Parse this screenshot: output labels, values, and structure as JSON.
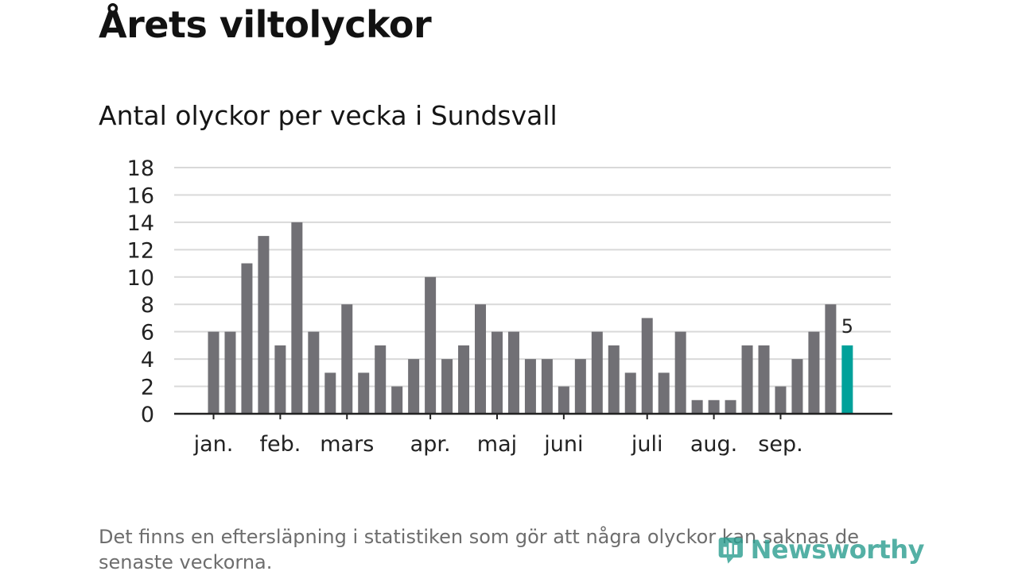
{
  "title": "Årets viltolyckor",
  "subtitle": "Antal olyckor per vecka i Sundsvall",
  "note": "Det finns en eftersläpning i statistiken som gör att några olyckor kan saknas de senaste veckorna.",
  "brand": "Newsworthy",
  "colors": {
    "bar": "#717075",
    "highlight": "#00a19a",
    "grid": "#d9d9d9",
    "axis": "#222222"
  },
  "chart_data": {
    "type": "bar",
    "title": "Antal olyckor per vecka i Sundsvall",
    "xlabel": "",
    "ylabel": "",
    "ylim": [
      0,
      18
    ],
    "yticks": [
      0,
      2,
      4,
      6,
      8,
      10,
      12,
      14,
      16,
      18
    ],
    "grid": true,
    "values": [
      6,
      6,
      11,
      13,
      5,
      14,
      6,
      3,
      8,
      3,
      5,
      2,
      4,
      10,
      4,
      5,
      8,
      6,
      6,
      4,
      4,
      2,
      4,
      6,
      5,
      3,
      7,
      3,
      6,
      1,
      1,
      1,
      5,
      5,
      2,
      4,
      6,
      8,
      5
    ],
    "highlight_index": 38,
    "highlight_label": "5",
    "month_labels": [
      {
        "label": "jan.",
        "bar_index": 0
      },
      {
        "label": "feb.",
        "bar_index": 4
      },
      {
        "label": "mars",
        "bar_index": 8
      },
      {
        "label": "apr.",
        "bar_index": 13
      },
      {
        "label": "maj",
        "bar_index": 17
      },
      {
        "label": "juni",
        "bar_index": 21
      },
      {
        "label": "juli",
        "bar_index": 26
      },
      {
        "label": "aug.",
        "bar_index": 30
      },
      {
        "label": "sep.",
        "bar_index": 34
      }
    ]
  }
}
